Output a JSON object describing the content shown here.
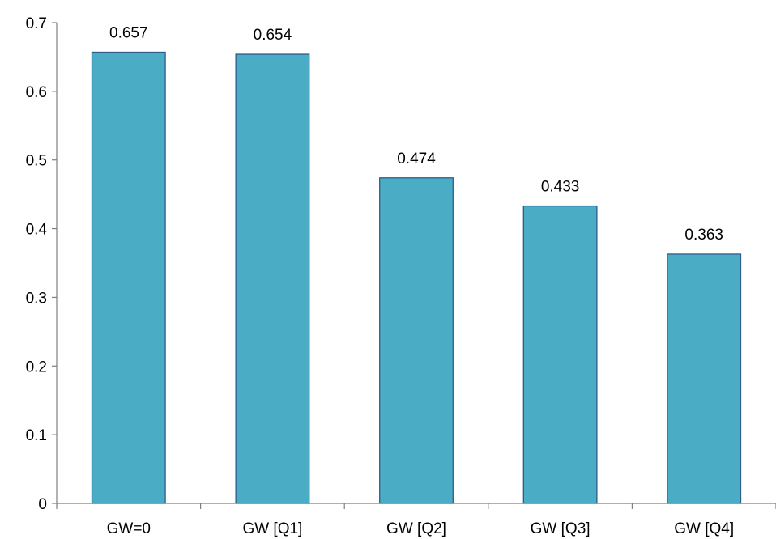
{
  "chart_data": {
    "type": "bar",
    "categories": [
      "GW=0",
      "GW [Q1]",
      "GW [Q2]",
      "GW [Q3]",
      "GW [Q4]"
    ],
    "values": [
      0.657,
      0.654,
      0.474,
      0.433,
      0.363
    ],
    "data_labels": [
      "0.657",
      "0.654",
      "0.474",
      "0.433",
      "0.363"
    ],
    "y_ticks": [
      "0",
      "0.1",
      "0.2",
      "0.3",
      "0.4",
      "0.5",
      "0.6",
      "0.7"
    ],
    "ylim": [
      0,
      0.7
    ],
    "grid": false,
    "legend": "none",
    "colors": {
      "bar_fill": "#4BACC6",
      "bar_stroke": "#2E5C8A",
      "axis": "#7F7F7F"
    }
  }
}
